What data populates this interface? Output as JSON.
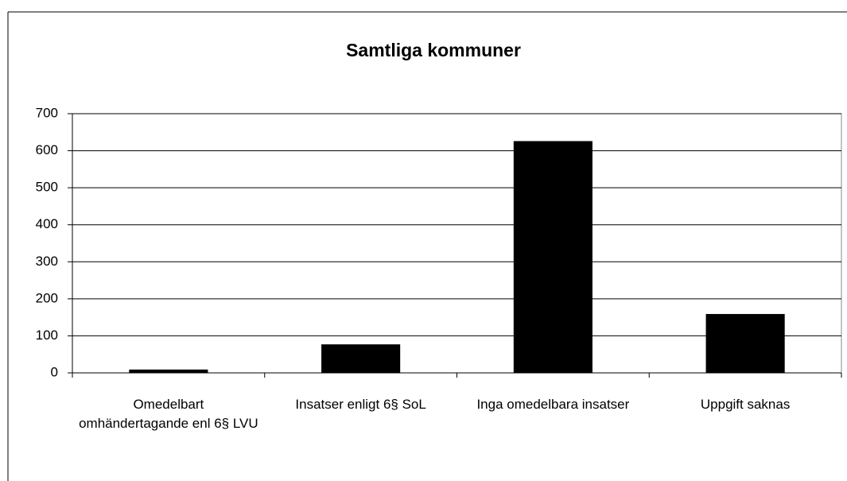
{
  "chart_data": {
    "type": "bar",
    "title": "Samtliga kommuner",
    "categories": [
      "Omedelbart omhändertagande enl 6§ LVU",
      "Insatser enligt 6§ SoL",
      "Inga omedelbara insatser",
      "Uppgift saknas"
    ],
    "values": [
      9,
      77,
      626,
      159
    ],
    "color": "#000000",
    "ylim": [
      0,
      700
    ],
    "yticks": [
      0,
      100,
      200,
      300,
      400,
      500,
      600,
      700
    ],
    "grid": true
  }
}
